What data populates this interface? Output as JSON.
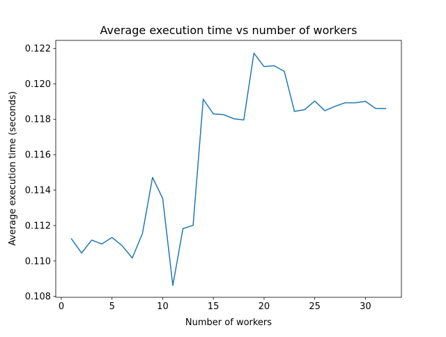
{
  "chart_data": {
    "type": "line",
    "title": "Average execution time vs number of workers",
    "xlabel": "Number of workers",
    "ylabel": "Average execution time (seconds)",
    "xlim": [
      -0.55,
      33.55
    ],
    "ylim": [
      0.10795,
      0.12245
    ],
    "xticks": [
      0,
      5,
      10,
      15,
      20,
      25,
      30
    ],
    "xtick_labels": [
      "0",
      "5",
      "10",
      "15",
      "20",
      "25",
      "30"
    ],
    "yticks": [
      0.108,
      0.11,
      0.112,
      0.114,
      0.116,
      0.118,
      0.12,
      0.122
    ],
    "ytick_labels": [
      "0.108",
      "0.110",
      "0.112",
      "0.114",
      "0.116",
      "0.118",
      "0.120",
      "0.122"
    ],
    "grid": false,
    "legend": "none",
    "series": [
      {
        "color": "#1f77b4",
        "x": [
          1,
          2,
          3,
          4,
          5,
          6,
          7,
          8,
          9,
          10,
          11,
          12,
          13,
          14,
          15,
          16,
          17,
          18,
          19,
          20,
          21,
          22,
          23,
          24,
          25,
          26,
          27,
          28,
          29,
          30,
          31,
          32
        ],
        "y": [
          0.11125,
          0.11045,
          0.11118,
          0.11096,
          0.11133,
          0.11086,
          0.11017,
          0.11155,
          0.11472,
          0.11353,
          0.10862,
          0.11183,
          0.11201,
          0.11913,
          0.1183,
          0.11826,
          0.11803,
          0.11796,
          0.12173,
          0.12097,
          0.12102,
          0.1207,
          0.11844,
          0.11854,
          0.11903,
          0.11848,
          0.11873,
          0.11893,
          0.11893,
          0.11901,
          0.11861,
          0.11861
        ]
      }
    ]
  }
}
